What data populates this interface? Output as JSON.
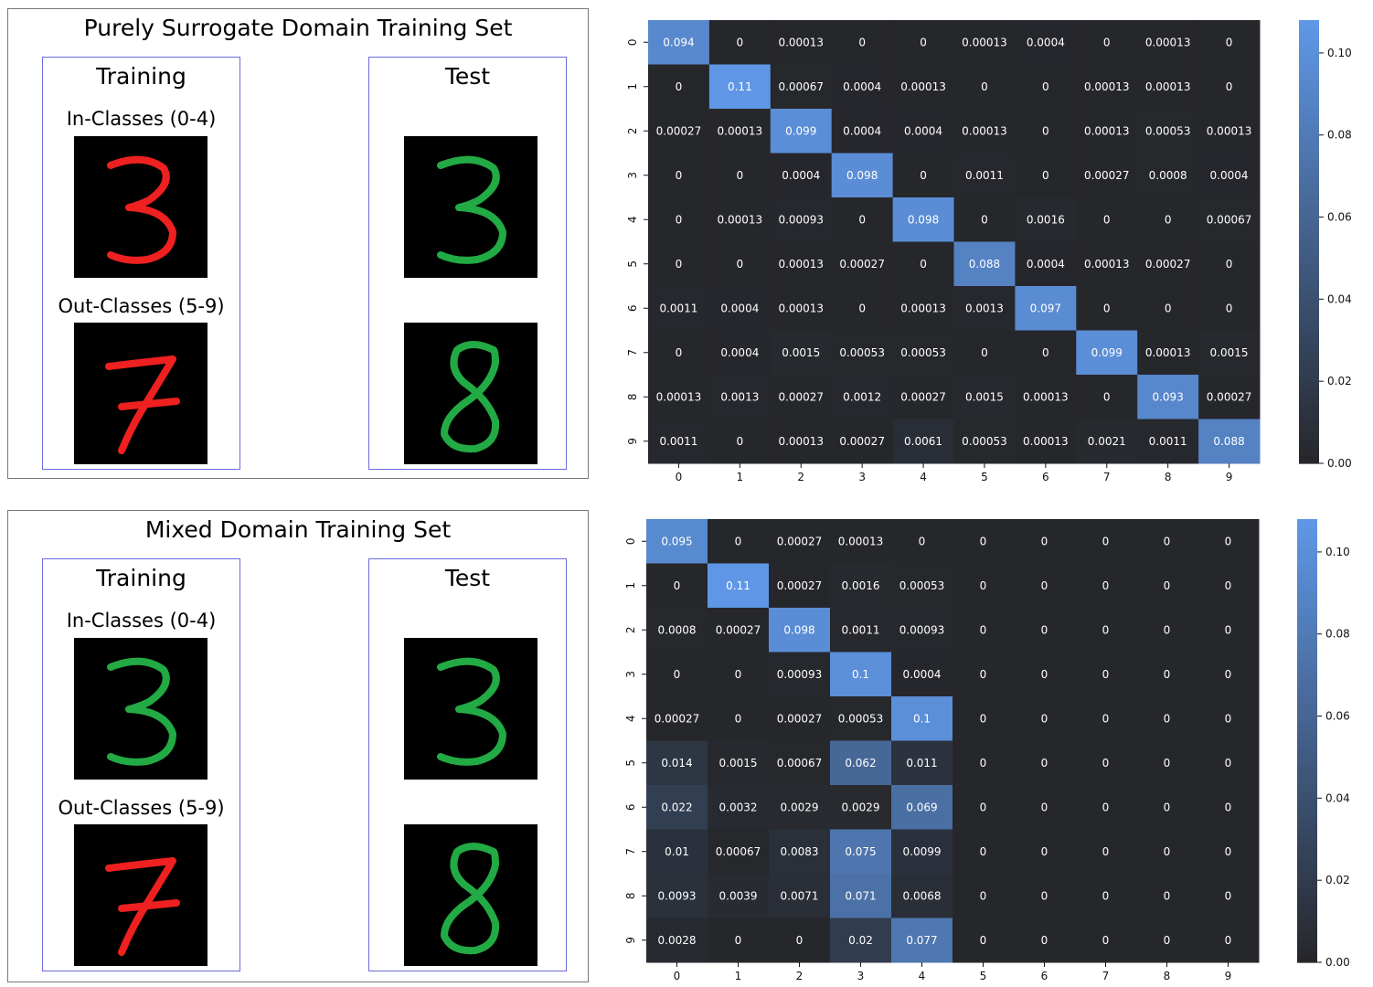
{
  "panels": [
    {
      "title": "Purely Surrogate Domain Training Set",
      "training_label": "Training",
      "in_classes_label": "In-Classes (0-4)",
      "out_classes_label": "Out-Classes (5-9)",
      "test_label": "Test",
      "train_in_digit": {
        "digit": "3",
        "color": "#ee2020"
      },
      "train_out_digit": {
        "digit": "7",
        "color": "#ee2020"
      },
      "test_in_digit": {
        "digit": "3",
        "color": "#22aa44"
      },
      "test_out_digit": {
        "digit": "8",
        "color": "#22aa44"
      }
    },
    {
      "title": "Mixed Domain Training Set",
      "training_label": "Training",
      "in_classes_label": "In-Classes (0-4)",
      "out_classes_label": "Out-Classes (5-9)",
      "test_label": "Test",
      "train_in_digit": {
        "digit": "3",
        "color": "#22aa44"
      },
      "train_out_digit": {
        "digit": "7",
        "color": "#ee2020"
      },
      "test_in_digit": {
        "digit": "3",
        "color": "#22aa44"
      },
      "test_out_digit": {
        "digit": "8",
        "color": "#22aa44"
      }
    }
  ],
  "chart_data": [
    {
      "type": "heatmap",
      "x_labels": [
        "0",
        "1",
        "2",
        "3",
        "4",
        "5",
        "6",
        "7",
        "8",
        "9"
      ],
      "y_labels": [
        "0",
        "1",
        "2",
        "3",
        "4",
        "5",
        "6",
        "7",
        "8",
        "9"
      ],
      "colorbar_ticks": [
        "0.00",
        "0.02",
        "0.04",
        "0.06",
        "0.08",
        "0.10"
      ],
      "vmin": 0,
      "vmax": 0.108,
      "colormap": [
        "#26272b",
        "#5f97e6"
      ],
      "values": [
        [
          "0.094",
          "0",
          "0.00013",
          "0",
          "0",
          "0.00013",
          "0.0004",
          "0",
          "0.00013",
          "0"
        ],
        [
          "0",
          "0.11",
          "0.00067",
          "0.0004",
          "0.00013",
          "0",
          "0",
          "0.00013",
          "0.00013",
          "0"
        ],
        [
          "0.00027",
          "0.00013",
          "0.099",
          "0.0004",
          "0.0004",
          "0.00013",
          "0",
          "0.00013",
          "0.00053",
          "0.00013"
        ],
        [
          "0",
          "0",
          "0.0004",
          "0.098",
          "0",
          "0.0011",
          "0",
          "0.00027",
          "0.0008",
          "0.0004"
        ],
        [
          "0",
          "0.00013",
          "0.00093",
          "0",
          "0.098",
          "0",
          "0.0016",
          "0",
          "0",
          "0.00067"
        ],
        [
          "0",
          "0",
          "0.00013",
          "0.00027",
          "0",
          "0.088",
          "0.0004",
          "0.00013",
          "0.00027",
          "0"
        ],
        [
          "0.0011",
          "0.0004",
          "0.00013",
          "0",
          "0.00013",
          "0.0013",
          "0.097",
          "0",
          "0",
          "0"
        ],
        [
          "0",
          "0.0004",
          "0.0015",
          "0.00053",
          "0.00053",
          "0",
          "0",
          "0.099",
          "0.00013",
          "0.0015"
        ],
        [
          "0.00013",
          "0.0013",
          "0.00027",
          "0.0012",
          "0.00027",
          "0.0015",
          "0.00013",
          "0",
          "0.093",
          "0.00027"
        ],
        [
          "0.0011",
          "0",
          "0.00013",
          "0.00027",
          "0.0061",
          "0.00053",
          "0.00013",
          "0.0021",
          "0.0011",
          "0.088"
        ]
      ]
    },
    {
      "type": "heatmap",
      "x_labels": [
        "0",
        "1",
        "2",
        "3",
        "4",
        "5",
        "6",
        "7",
        "8",
        "9"
      ],
      "y_labels": [
        "0",
        "1",
        "2",
        "3",
        "4",
        "5",
        "6",
        "7",
        "8",
        "9"
      ],
      "colorbar_ticks": [
        "0.00",
        "0.02",
        "0.04",
        "0.06",
        "0.08",
        "0.10"
      ],
      "vmin": 0,
      "vmax": 0.108,
      "colormap": [
        "#26272b",
        "#5f97e6"
      ],
      "values": [
        [
          "0.095",
          "0",
          "0.00027",
          "0.00013",
          "0",
          "0",
          "0",
          "0",
          "0",
          "0"
        ],
        [
          "0",
          "0.11",
          "0.00027",
          "0.0016",
          "0.00053",
          "0",
          "0",
          "0",
          "0",
          "0"
        ],
        [
          "0.0008",
          "0.00027",
          "0.098",
          "0.0011",
          "0.00093",
          "0",
          "0",
          "0",
          "0",
          "0"
        ],
        [
          "0",
          "0",
          "0.00093",
          "0.1",
          "0.0004",
          "0",
          "0",
          "0",
          "0",
          "0"
        ],
        [
          "0.00027",
          "0",
          "0.00027",
          "0.00053",
          "0.1",
          "0",
          "0",
          "0",
          "0",
          "0"
        ],
        [
          "0.014",
          "0.0015",
          "0.00067",
          "0.062",
          "0.011",
          "0",
          "0",
          "0",
          "0",
          "0"
        ],
        [
          "0.022",
          "0.0032",
          "0.0029",
          "0.0029",
          "0.069",
          "0",
          "0",
          "0",
          "0",
          "0"
        ],
        [
          "0.01",
          "0.00067",
          "0.0083",
          "0.075",
          "0.0099",
          "0",
          "0",
          "0",
          "0",
          "0"
        ],
        [
          "0.0093",
          "0.0039",
          "0.0071",
          "0.071",
          "0.0068",
          "0",
          "0",
          "0",
          "0",
          "0"
        ],
        [
          "0.0028",
          "0",
          "0",
          "0.02",
          "0.077",
          "0",
          "0",
          "0",
          "0",
          "0"
        ]
      ]
    }
  ]
}
